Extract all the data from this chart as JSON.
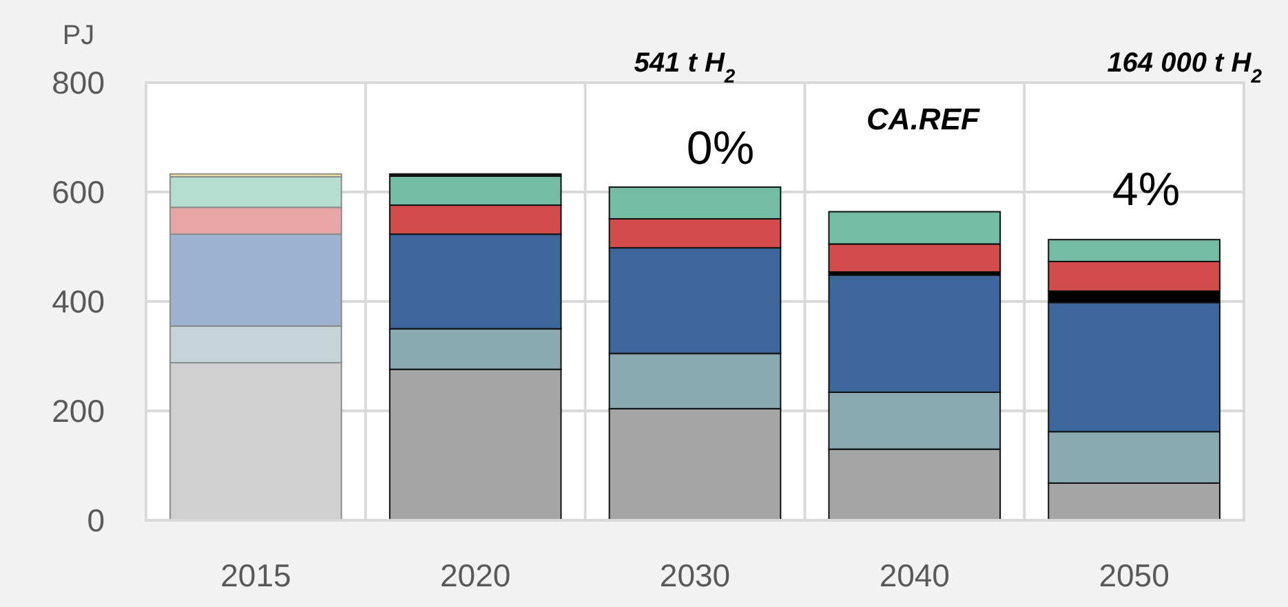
{
  "chart_data": {
    "type": "bar",
    "stacked": true,
    "ylabel": "PJ",
    "categories": [
      "2015",
      "2020",
      "2030",
      "2040",
      "2050"
    ],
    "ylim": [
      0,
      800
    ],
    "yticks": [
      0,
      200,
      400,
      600,
      800
    ],
    "grid": true,
    "series": [
      {
        "colors": [
          "#d0d0d0",
          "#a5a5a5",
          "#a5a5a5",
          "#a5a5a5",
          "#a5a5a5"
        ],
        "values": [
          288,
          276,
          204,
          130,
          68
        ]
      },
      {
        "colors": [
          "#c5d4d8",
          "#8aa9b1",
          "#8aa9b1",
          "#8aa9b1",
          "#8aa9b1"
        ],
        "values": [
          67,
          74,
          101,
          104,
          94
        ]
      },
      {
        "colors": [
          "#9db3d0",
          "#3d679c",
          "#3d679c",
          "#3d679c",
          "#3d679c"
        ],
        "values": [
          168,
          173,
          193,
          214,
          236
        ]
      },
      {
        "colors": [
          null,
          null,
          null,
          "#000000",
          "#000000"
        ],
        "values": [
          null,
          null,
          null,
          6,
          21
        ]
      },
      {
        "colors": [
          "#e8a5a5",
          "#d24c4c",
          "#d24c4c",
          "#d24c4c",
          "#d24c4c"
        ],
        "values": [
          49,
          53,
          53,
          51,
          54
        ]
      },
      {
        "colors": [
          "#b5ddd0",
          "#74bda4",
          "#74bda4",
          "#74bda4",
          "#74bda4"
        ],
        "values": [
          56,
          53,
          58,
          59,
          40
        ]
      },
      {
        "colors": [
          "#f5e8a0",
          "#1a1a1a",
          null,
          null,
          null
        ],
        "values": [
          5,
          4,
          null,
          null,
          null
        ]
      }
    ],
    "annotations": [
      "541 t H$_{2}$",
      "164 000 t H$_{2}$",
      "0%",
      "CA.REF",
      "4%"
    ]
  }
}
